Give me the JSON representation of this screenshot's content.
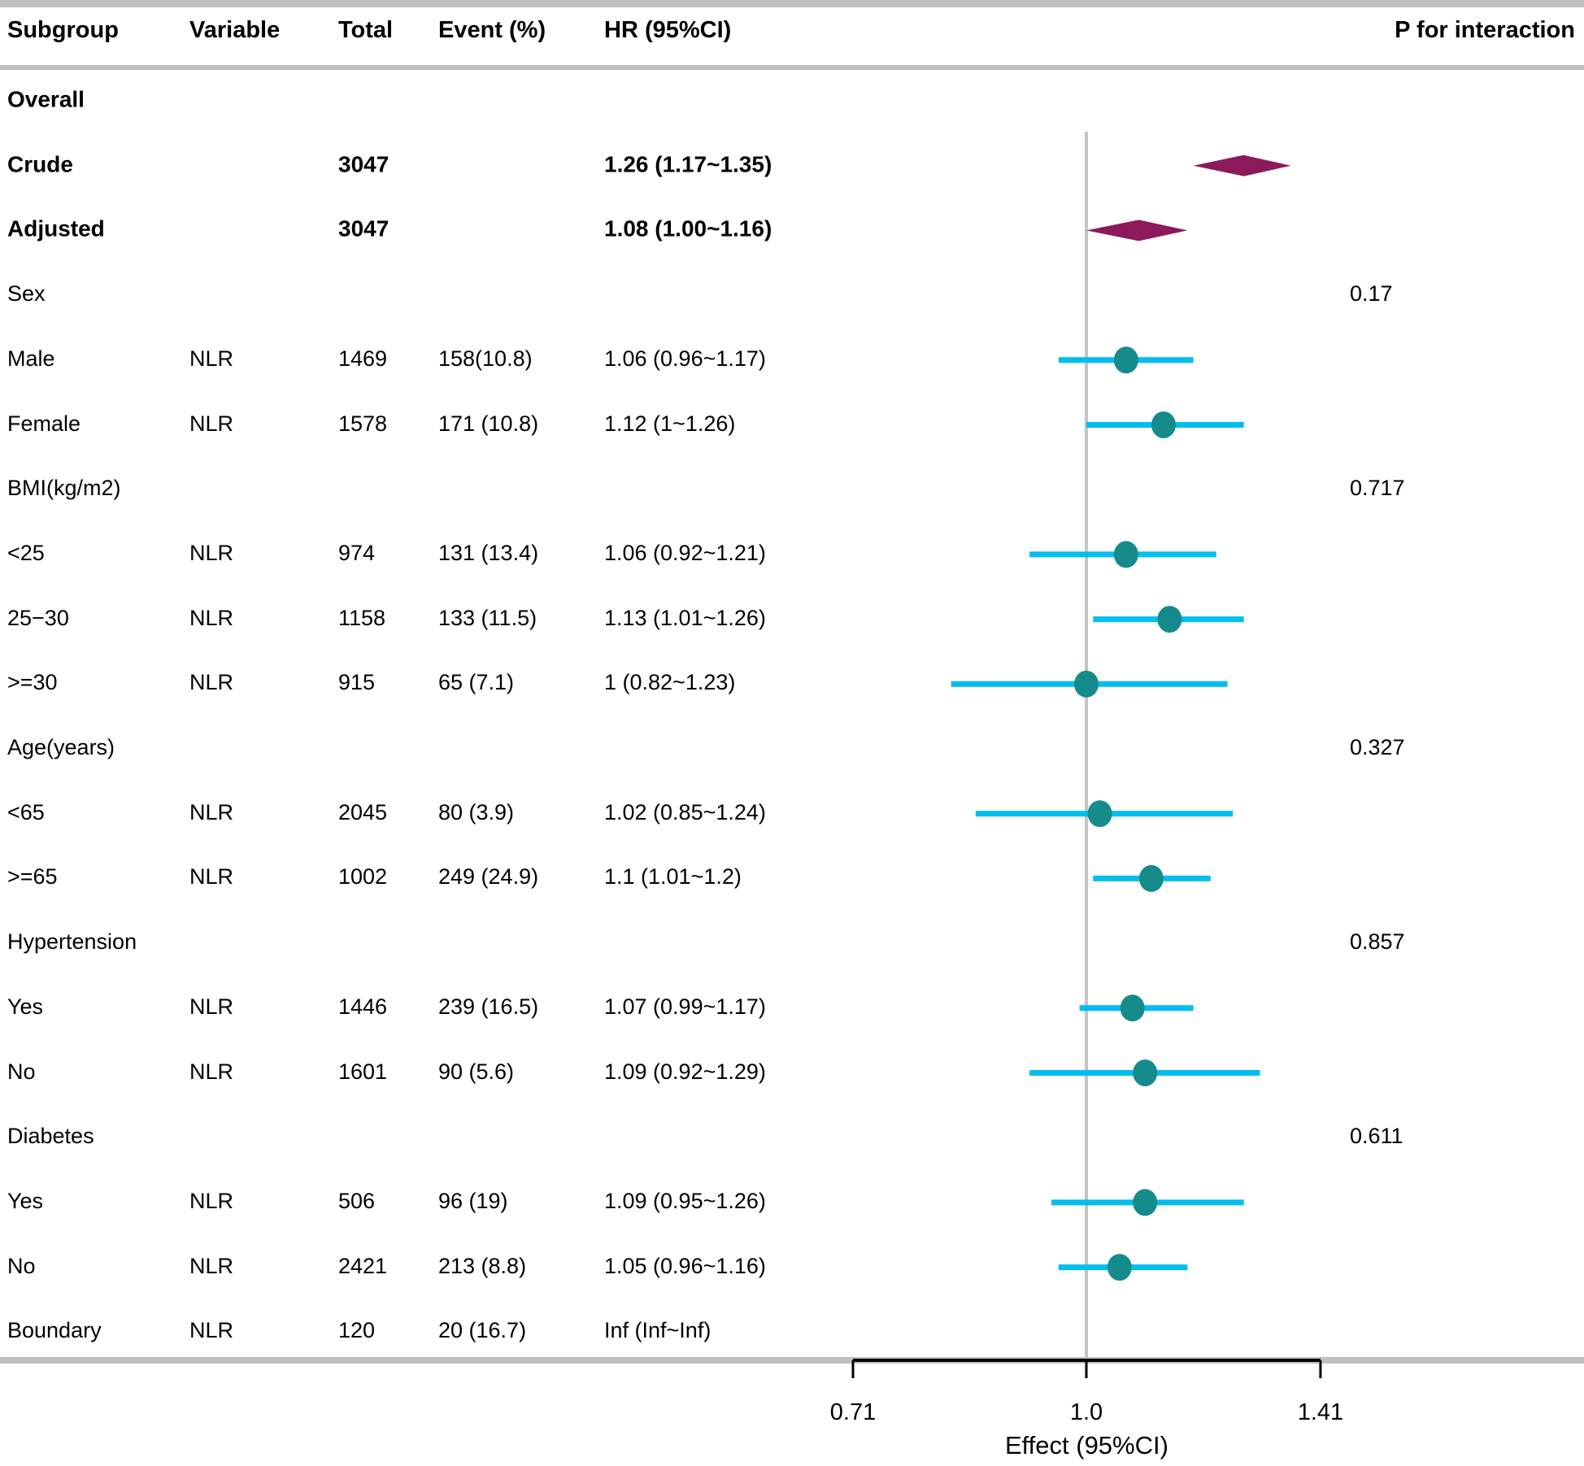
{
  "header": {
    "subgroup_label": "Subgroup",
    "variable_label": "Variable",
    "total_label": "Total",
    "event_label": "Event (%)",
    "hr_label": "HR (95%CI)",
    "p_label": "P for interaction"
  },
  "colors": {
    "ci_line": "#00bef0",
    "point": "#168b8c",
    "diamond": "#8c1a5a",
    "rule_gray": "#bfbfbf",
    "ref_line": "#c3c3c3",
    "axis_black": "#000000"
  },
  "chart_data": {
    "type": "scatter",
    "subtype": "forest-plot",
    "xlabel": "Effect (95%CI)",
    "x_scale": "log",
    "x_ticks": [
      0.71,
      1.0,
      1.41
    ],
    "x_tick_labels": [
      "0.71",
      "1.0",
      "1.41"
    ],
    "x_range": [
      0.71,
      1.41
    ],
    "ref_line": 1.0,
    "grid": false,
    "legend": false,
    "rows": [
      {
        "subgroup": "Overall",
        "variable": "",
        "total": "",
        "event": "",
        "hr_text": "",
        "p": "",
        "bold": true,
        "marker": "none",
        "est": null,
        "lo": null,
        "hi": null
      },
      {
        "subgroup": "Crude",
        "variable": "",
        "total": "3047",
        "event": "",
        "hr_text": "1.26 (1.17~1.35)",
        "p": "",
        "bold": true,
        "marker": "diamond",
        "est": 1.26,
        "lo": 1.17,
        "hi": 1.35
      },
      {
        "subgroup": "Adjusted",
        "variable": "",
        "total": "3047",
        "event": "",
        "hr_text": "1.08 (1.00~1.16)",
        "p": "",
        "bold": true,
        "marker": "diamond",
        "est": 1.08,
        "lo": 1.0,
        "hi": 1.16
      },
      {
        "subgroup": "Sex",
        "variable": "",
        "total": "",
        "event": "",
        "hr_text": "",
        "p": "0.17",
        "bold": false,
        "marker": "none",
        "est": null,
        "lo": null,
        "hi": null
      },
      {
        "subgroup": "Male",
        "variable": "NLR",
        "total": "1469",
        "event": "158(10.8)",
        "hr_text": "1.06 (0.96~1.17)",
        "p": "",
        "bold": false,
        "marker": "circle",
        "est": 1.06,
        "lo": 0.96,
        "hi": 1.17
      },
      {
        "subgroup": "Female",
        "variable": "NLR",
        "total": "1578",
        "event": "171 (10.8)",
        "hr_text": "1.12 (1~1.26)",
        "p": "",
        "bold": false,
        "marker": "circle",
        "est": 1.12,
        "lo": 1.0,
        "hi": 1.26
      },
      {
        "subgroup": "BMI(kg/m2)",
        "variable": "",
        "total": "",
        "event": "",
        "hr_text": "",
        "p": "0.717",
        "bold": false,
        "marker": "none",
        "est": null,
        "lo": null,
        "hi": null
      },
      {
        "subgroup": "<25",
        "variable": "NLR",
        "total": "974",
        "event": "131 (13.4)",
        "hr_text": "1.06 (0.92~1.21)",
        "p": "",
        "bold": false,
        "marker": "circle",
        "est": 1.06,
        "lo": 0.92,
        "hi": 1.21
      },
      {
        "subgroup": "25−30",
        "variable": "NLR",
        "total": "1158",
        "event": "133 (11.5)",
        "hr_text": "1.13 (1.01~1.26)",
        "p": "",
        "bold": false,
        "marker": "circle",
        "est": 1.13,
        "lo": 1.01,
        "hi": 1.26
      },
      {
        "subgroup": ">=30",
        "variable": "NLR",
        "total": "915",
        "event": "65 (7.1)",
        "hr_text": "1 (0.82~1.23)",
        "p": "",
        "bold": false,
        "marker": "circle",
        "est": 1.0,
        "lo": 0.82,
        "hi": 1.23
      },
      {
        "subgroup": "Age(years)",
        "variable": "",
        "total": "",
        "event": "",
        "hr_text": "",
        "p": "0.327",
        "bold": false,
        "marker": "none",
        "est": null,
        "lo": null,
        "hi": null
      },
      {
        "subgroup": "<65",
        "variable": "NLR",
        "total": "2045",
        "event": "80 (3.9)",
        "hr_text": "1.02 (0.85~1.24)",
        "p": "",
        "bold": false,
        "marker": "circle",
        "est": 1.02,
        "lo": 0.85,
        "hi": 1.24
      },
      {
        "subgroup": ">=65",
        "variable": "NLR",
        "total": "1002",
        "event": "249 (24.9)",
        "hr_text": "1.1 (1.01~1.2)",
        "p": "",
        "bold": false,
        "marker": "circle",
        "est": 1.1,
        "lo": 1.01,
        "hi": 1.2
      },
      {
        "subgroup": "Hypertension",
        "variable": "",
        "total": "",
        "event": "",
        "hr_text": "",
        "p": "0.857",
        "bold": false,
        "marker": "none",
        "est": null,
        "lo": null,
        "hi": null
      },
      {
        "subgroup": "Yes",
        "variable": "NLR",
        "total": "1446",
        "event": "239 (16.5)",
        "hr_text": "1.07 (0.99~1.17)",
        "p": "",
        "bold": false,
        "marker": "circle",
        "est": 1.07,
        "lo": 0.99,
        "hi": 1.17
      },
      {
        "subgroup": "No",
        "variable": "NLR",
        "total": "1601",
        "event": "90 (5.6)",
        "hr_text": "1.09 (0.92~1.29)",
        "p": "",
        "bold": false,
        "marker": "circle",
        "est": 1.09,
        "lo": 0.92,
        "hi": 1.29
      },
      {
        "subgroup": "Diabetes",
        "variable": "",
        "total": "",
        "event": "",
        "hr_text": "",
        "p": "0.611",
        "bold": false,
        "marker": "none",
        "est": null,
        "lo": null,
        "hi": null
      },
      {
        "subgroup": "Yes",
        "variable": "NLR",
        "total": "506",
        "event": "96 (19)",
        "hr_text": "1.09 (0.95~1.26)",
        "p": "",
        "bold": false,
        "marker": "circle",
        "est": 1.09,
        "lo": 0.95,
        "hi": 1.26
      },
      {
        "subgroup": "No",
        "variable": "NLR",
        "total": "2421",
        "event": "213 (8.8)",
        "hr_text": "1.05 (0.96~1.16)",
        "p": "",
        "bold": false,
        "marker": "circle",
        "est": 1.05,
        "lo": 0.96,
        "hi": 1.16
      },
      {
        "subgroup": "Boundary",
        "variable": "NLR",
        "total": "120",
        "event": "20 (16.7)",
        "hr_text": "Inf (Inf~Inf)",
        "p": "",
        "bold": false,
        "marker": "none",
        "est": null,
        "lo": null,
        "hi": null
      }
    ]
  }
}
